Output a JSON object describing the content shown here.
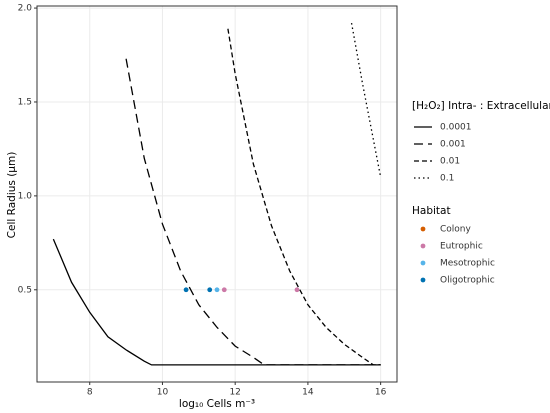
{
  "chart_data": {
    "type": "line",
    "xlabel": "log₁₀ Cells m⁻³",
    "ylabel": "Cell Radius (μm)",
    "xlim": [
      6.55,
      16.45
    ],
    "ylim": [
      0.009,
      2.011
    ],
    "xticks": [
      8,
      10,
      12,
      14,
      16
    ],
    "yticks": [
      0.5,
      {
        "value": 1,
        "label": "1.0"
      },
      1.5,
      {
        "value": 2,
        "label": "2.0"
      }
    ],
    "grid": true,
    "legend_title": "[H₂O₂] Intra- : Extracellular",
    "series": [
      {
        "name": "0.0001",
        "color": "#000000",
        "dash": "none",
        "x": [
          7,
          7.5,
          8,
          8.5,
          9,
          9.5,
          9.7,
          16
        ],
        "values": [
          0.77,
          0.54,
          0.38,
          0.25,
          0.18,
          0.12,
          0.1,
          0.1
        ]
      },
      {
        "name": "0.001",
        "color": "#000000",
        "dash": "9,5",
        "x": [
          9,
          9.5,
          10,
          10.5,
          11,
          11.5,
          12,
          12.5,
          12.8,
          16
        ],
        "values": [
          1.73,
          1.2,
          0.85,
          0.6,
          0.42,
          0.3,
          0.2,
          0.14,
          0.1,
          0.1
        ]
      },
      {
        "name": "0.01",
        "color": "#000000",
        "dash": "5,3",
        "x": [
          11.8,
          12,
          12.5,
          13,
          13.5,
          14,
          14.5,
          15,
          15.5,
          15.8,
          16
        ],
        "values": [
          1.89,
          1.65,
          1.17,
          0.84,
          0.6,
          0.42,
          0.3,
          0.21,
          0.14,
          0.1,
          0.1
        ]
      },
      {
        "name": "0.1",
        "color": "#000000",
        "dash": "1.5,3",
        "x": [
          15.2,
          15.5,
          16
        ],
        "values": [
          1.92,
          1.6,
          1.1
        ]
      }
    ],
    "points_legend_title": "Habitat",
    "points": [
      {
        "name": "Colony",
        "color": "#D55E00",
        "x": [],
        "values": []
      },
      {
        "name": "Eutrophic",
        "color": "#CC79A7",
        "x": [
          11.7,
          13.7
        ],
        "values": [
          0.5,
          0.5
        ]
      },
      {
        "name": "Mesotrophic",
        "color": "#56B4E9",
        "x": [
          11.5
        ],
        "values": [
          0.5
        ]
      },
      {
        "name": "Oligotrophic",
        "color": "#0072B2",
        "x": [
          10.65,
          11.3
        ],
        "values": [
          0.5,
          0.5
        ]
      }
    ]
  }
}
